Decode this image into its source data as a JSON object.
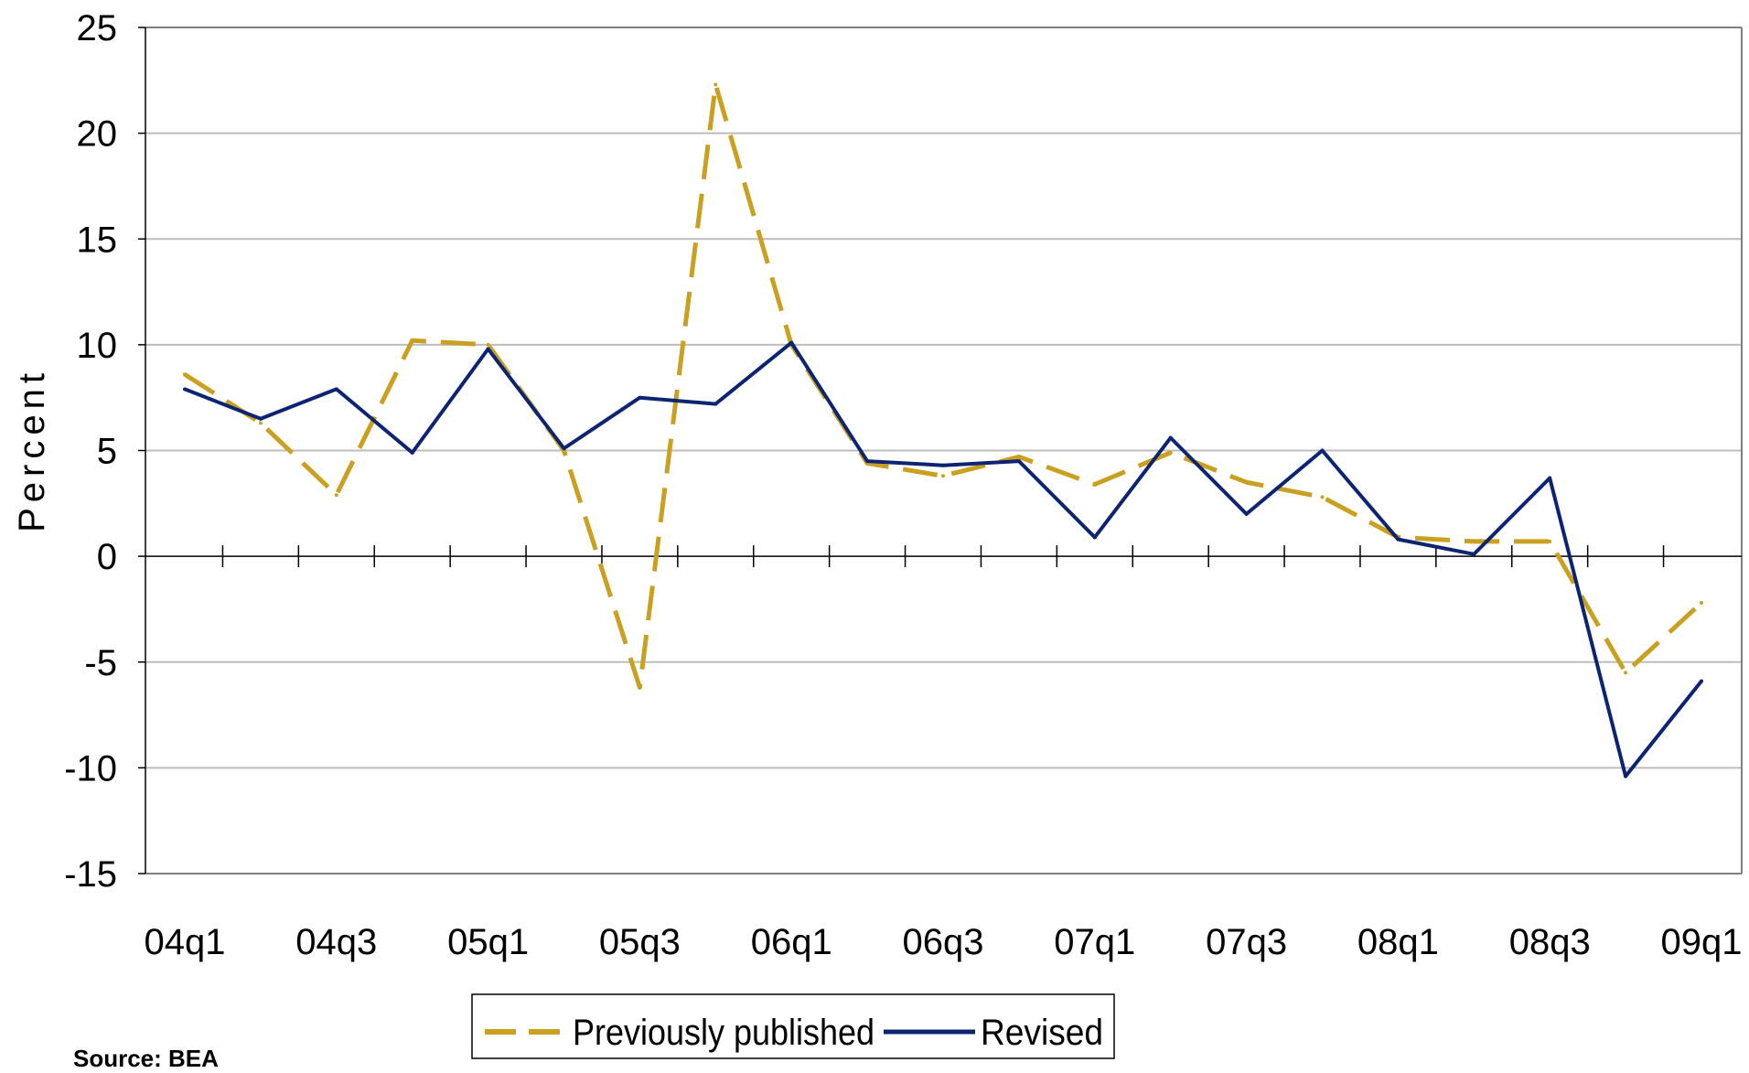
{
  "source_note": "Source: BEA",
  "chart_data": {
    "type": "line",
    "title": "",
    "xlabel": "",
    "ylabel": "Percent",
    "ylim": [
      -15,
      25
    ],
    "yticks": [
      -15,
      -10,
      -5,
      0,
      5,
      10,
      15,
      20,
      25
    ],
    "grid": true,
    "legend_position": "bottom-center",
    "categories": [
      "04q1",
      "04q2",
      "04q3",
      "04q4",
      "05q1",
      "05q2",
      "05q3",
      "05q4",
      "06q1",
      "06q2",
      "06q3",
      "06q4",
      "07q1",
      "07q2",
      "07q3",
      "07q4",
      "08q1",
      "08q2",
      "08q3",
      "08q4",
      "09q1"
    ],
    "tick_labels": [
      "04q1",
      "04q3",
      "05q1",
      "05q3",
      "06q1",
      "06q3",
      "07q1",
      "07q3",
      "08q1",
      "08q3",
      "09q1"
    ],
    "series": [
      {
        "name": "Previously published",
        "color": "#C9A020",
        "style": "dashed",
        "values": [
          8.6,
          6.3,
          2.9,
          10.2,
          10.0,
          5.0,
          -6.2,
          22.3,
          10.0,
          4.4,
          3.8,
          4.7,
          3.4,
          4.9,
          3.5,
          2.8,
          0.9,
          0.7,
          0.7,
          -5.5,
          -2.2
        ]
      },
      {
        "name": "Revised",
        "color": "#0D2472",
        "style": "solid",
        "values": [
          7.9,
          6.5,
          7.9,
          4.9,
          9.8,
          5.1,
          7.5,
          7.2,
          10.1,
          4.5,
          4.3,
          4.5,
          0.9,
          5.6,
          2.0,
          5.0,
          0.8,
          0.1,
          3.7,
          -10.4,
          -5.9
        ]
      }
    ]
  }
}
